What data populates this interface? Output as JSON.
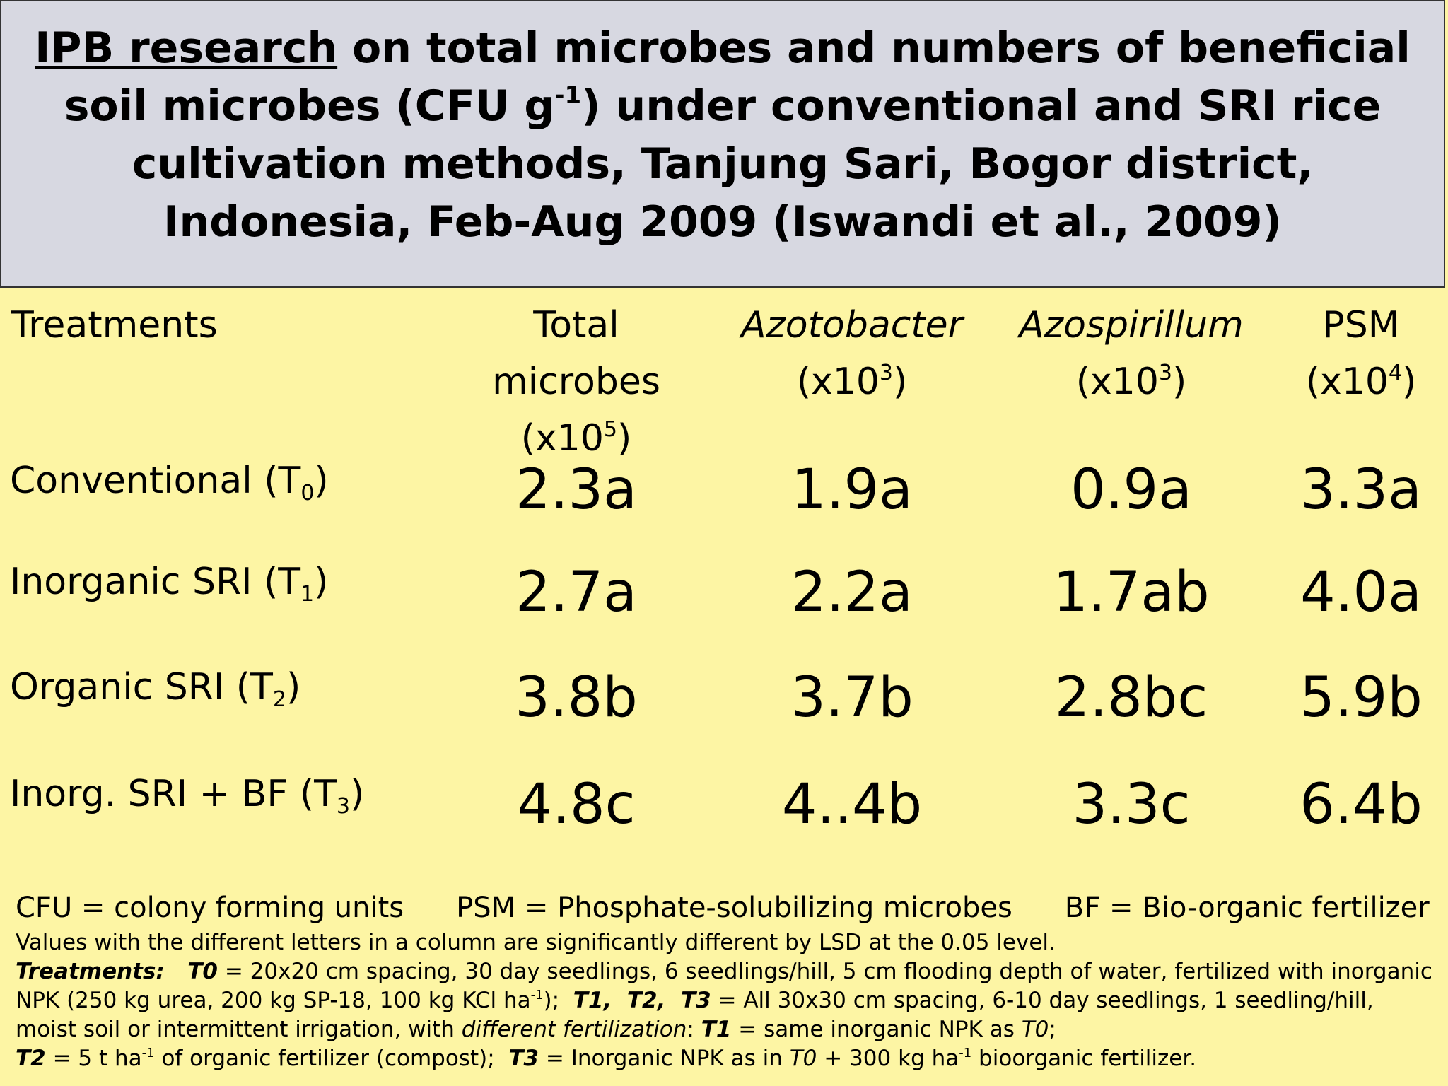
{
  "title": {
    "underlined": "IPB research",
    "line1_rest": " on total microbes and numbers of beneficial",
    "line2_pre": "soil microbes (CFU g",
    "line2_sup": "-1",
    "line2_post": ") under conventional and SRI rice",
    "line3": "cultivation methods, Tanjung Sari, Bogor district,",
    "line4": "Indonesia, Feb-Aug 2009 (Iswandi et al., 2009)"
  },
  "headers": {
    "treatments": "Treatments",
    "total_l1": "Total",
    "total_l2": "microbes",
    "total_l3_pre": "(x10",
    "total_l3_sup": "5",
    "total_l3_post": ")",
    "azotobacter": "Azotobacter",
    "azotobacter_pre": "(x10",
    "azotobacter_sup": "3",
    "azotobacter_post": ")",
    "azospirillum": "Azospirillum",
    "azospirillum_pre": "(x10",
    "azospirillum_sup": "3",
    "azospirillum_post": ")",
    "psm": "PSM",
    "psm_pre": "(x10",
    "psm_sup": "4",
    "psm_post": ")"
  },
  "rows": [
    {
      "name": "Conventional (T",
      "sub": "0",
      "close": ")",
      "total": "2.3a",
      "azotobacter": "1.9a",
      "azospirillum": "0.9a",
      "psm": "3.3a"
    },
    {
      "name": "Inorganic SRI  (T",
      "sub": "1",
      "close": ")",
      "total": "2.7a",
      "azotobacter": "2.2a",
      "azospirillum": "1.7ab",
      "psm": "4.0a"
    },
    {
      "name": "Organic SRI (T",
      "sub": "2",
      "close": ")",
      "total": "3.8b",
      "azotobacter": "3.7b",
      "azospirillum": "2.8bc",
      "psm": "5.9b"
    },
    {
      "name": "Inorg.  SRI + BF (T",
      "sub": "3",
      "close": ")",
      "total": "4.8c",
      "azotobacter": "4..4b",
      "azospirillum": "3.3c",
      "psm": "6.4b"
    }
  ],
  "footer": {
    "cfu": "CFU = colony forming units",
    "psm": "PSM = Phosphate-solubilizing microbes",
    "bf": "BF = Bio-organic fertilizer",
    "lsd": "Values with the different letters in a column are significantly different by LSD at the 0.05 level.",
    "treat_label": "Treatments",
    "treat_colon": ":   ",
    "t0_label": "T0",
    "t0_text": " = 20x20 cm spacing, 30 day seedlings, 6 seedlings/hill, 5 cm flooding depth of water, fertilized with inorganic NPK (250 kg urea, 200 kg SP-18, 100 kg KCl ha",
    "t0_sup": "-1",
    "t0_close": ");  ",
    "t123_label": "T1,  T2,  T3",
    "t123_text": " = All 30x30 cm spacing, 6-10 day seedlings, 1 seedling/hill, moist soil or intermittent irrigation, with ",
    "diff_fert": "different fertilization",
    "colon2": ": ",
    "t1_label": "T1",
    "t1_text": " = same inorganic NPK as ",
    "t1_ref": "T0",
    "t1_end": "; ",
    "t2_label": "T2",
    "t2_text": " = 5 t ha",
    "t2_sup": "-1",
    "t2_text2": " of organic fertilizer (compost);  ",
    "t3_label": "T3",
    "t3_text": " = Inorganic NPK as in ",
    "t3_ref": "T0",
    "t3_text2": " + 300 kg ha",
    "t3_sup": "-1",
    "t3_end": " bioorganic fertilizer."
  }
}
